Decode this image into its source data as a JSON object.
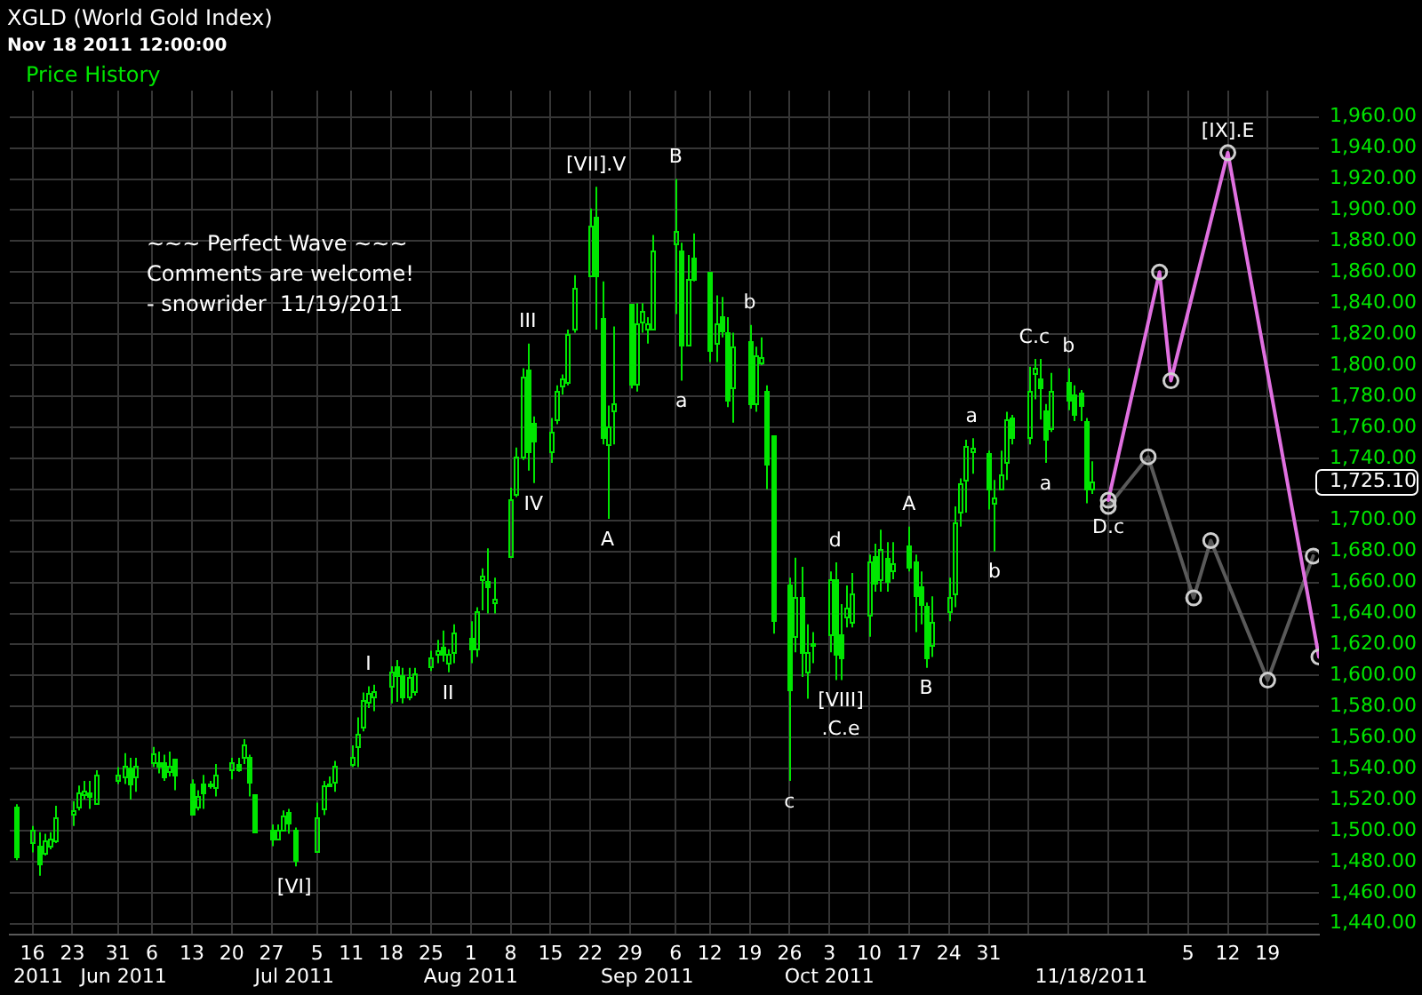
{
  "chart_data": {
    "type": "candlestick",
    "title": "XGLD (World Gold Index)",
    "subtitle": "Nov 18 2011 12:00:00",
    "x": [
      "2011-05-13",
      "2011-05-16",
      "2011-05-17",
      "2011-05-18",
      "2011-05-19",
      "2011-05-20",
      "2011-05-23",
      "2011-05-24",
      "2011-05-25",
      "2011-05-26",
      "2011-05-27",
      "2011-05-31",
      "2011-06-01",
      "2011-06-02",
      "2011-06-03",
      "2011-06-06",
      "2011-06-07",
      "2011-06-08",
      "2011-06-09",
      "2011-06-10",
      "2011-06-13",
      "2011-06-14",
      "2011-06-15",
      "2011-06-16",
      "2011-06-17",
      "2011-06-20",
      "2011-06-21",
      "2011-06-22",
      "2011-06-23",
      "2011-06-24",
      "2011-06-27",
      "2011-06-28",
      "2011-06-29",
      "2011-06-30",
      "2011-07-01",
      "2011-07-05",
      "2011-07-06",
      "2011-07-07",
      "2011-07-08",
      "2011-07-11",
      "2011-07-12",
      "2011-07-13",
      "2011-07-14",
      "2011-07-15",
      "2011-07-18",
      "2011-07-19",
      "2011-07-20",
      "2011-07-21",
      "2011-07-22",
      "2011-07-25",
      "2011-07-26",
      "2011-07-27",
      "2011-07-28",
      "2011-07-29",
      "2011-08-01",
      "2011-08-02",
      "2011-08-03",
      "2011-08-04",
      "2011-08-05",
      "2011-08-08",
      "2011-08-09",
      "2011-08-10",
      "2011-08-11",
      "2011-08-12",
      "2011-08-15",
      "2011-08-16",
      "2011-08-17",
      "2011-08-18",
      "2011-08-19",
      "2011-08-22",
      "2011-08-23",
      "2011-08-24",
      "2011-08-25",
      "2011-08-26",
      "2011-08-29",
      "2011-08-30",
      "2011-08-31",
      "2011-09-01",
      "2011-09-02",
      "2011-09-06",
      "2011-09-07",
      "2011-09-08",
      "2011-09-09",
      "2011-09-12",
      "2011-09-13",
      "2011-09-14",
      "2011-09-15",
      "2011-09-16",
      "2011-09-19",
      "2011-09-20",
      "2011-09-21",
      "2011-09-22",
      "2011-09-23",
      "2011-09-26",
      "2011-09-27",
      "2011-09-28",
      "2011-09-29",
      "2011-09-30",
      "2011-10-03",
      "2011-10-04",
      "2011-10-05",
      "2011-10-06",
      "2011-10-07",
      "2011-10-10",
      "2011-10-11",
      "2011-10-12",
      "2011-10-13",
      "2011-10-14",
      "2011-10-17",
      "2011-10-18",
      "2011-10-19",
      "2011-10-20",
      "2011-10-21",
      "2011-10-24",
      "2011-10-25",
      "2011-10-26",
      "2011-10-27",
      "2011-10-28",
      "2011-10-31",
      "2011-11-01",
      "2011-11-02",
      "2011-11-03",
      "2011-11-04",
      "2011-11-07",
      "2011-11-08",
      "2011-11-09",
      "2011-11-10",
      "2011-11-11",
      "2011-11-14",
      "2011-11-15",
      "2011-11-16",
      "2011-11-17",
      "2011-11-18"
    ],
    "series": [
      {
        "name": "Price History",
        "color": "#00e600",
        "ohlc": [
          [
            1515,
            1517,
            1481,
            1483
          ],
          [
            1493,
            1503,
            1486,
            1500
          ],
          [
            1490,
            1499,
            1471,
            1479
          ],
          [
            1486,
            1498,
            1484,
            1494
          ],
          [
            1490,
            1499,
            1488,
            1495
          ],
          [
            1494,
            1516,
            1492,
            1509
          ],
          [
            1511,
            1519,
            1503,
            1513
          ],
          [
            1516,
            1529,
            1513,
            1525
          ],
          [
            1524,
            1532,
            1520,
            1526
          ],
          [
            1525,
            1532,
            1514,
            1522
          ],
          [
            1518,
            1539,
            1518,
            1536
          ],
          [
            1533,
            1541,
            1530,
            1536
          ],
          [
            1535,
            1550,
            1530,
            1542
          ],
          [
            1541,
            1547,
            1520,
            1530
          ],
          [
            1535,
            1547,
            1525,
            1542
          ],
          [
            1544,
            1554,
            1541,
            1550
          ],
          [
            1544,
            1551,
            1537,
            1542
          ],
          [
            1544,
            1549,
            1532,
            1535
          ],
          [
            1538,
            1551,
            1535,
            1542
          ],
          [
            1546,
            1546,
            1526,
            1536
          ],
          [
            1530,
            1533,
            1510,
            1511
          ],
          [
            1516,
            1526,
            1513,
            1522
          ],
          [
            1530,
            1536,
            1514,
            1525
          ],
          [
            1529,
            1532,
            1527,
            1530
          ],
          [
            1528,
            1543,
            1522,
            1536
          ],
          [
            1540,
            1547,
            1533,
            1544
          ],
          [
            1543,
            1547,
            1538,
            1540
          ],
          [
            1547,
            1559,
            1543,
            1556
          ],
          [
            1547,
            1549,
            1522,
            1531
          ],
          [
            1524,
            1524,
            1499,
            1499
          ],
          [
            1500,
            1504,
            1490,
            1495
          ],
          [
            1495,
            1504,
            1494,
            1500
          ],
          [
            1501,
            1513,
            1501,
            1510
          ],
          [
            1512,
            1514,
            1498,
            1505
          ],
          [
            1500,
            1502,
            1477,
            1481
          ],
          [
            1487,
            1518,
            1487,
            1509
          ],
          [
            1514,
            1532,
            1510,
            1529
          ],
          [
            1529,
            1535,
            1529,
            1530
          ],
          [
            1532,
            1545,
            1525,
            1542
          ],
          [
            1543,
            1555,
            1541,
            1548
          ],
          [
            1554,
            1573,
            1541,
            1562
          ],
          [
            1567,
            1589,
            1564,
            1584
          ],
          [
            1583,
            1593,
            1579,
            1589
          ],
          [
            1587,
            1594,
            1577,
            1590
          ],
          [
            1593,
            1606,
            1582,
            1602
          ],
          [
            1606,
            1610,
            1583,
            1600
          ],
          [
            1600,
            1605,
            1582,
            1587
          ],
          [
            1586,
            1605,
            1584,
            1599
          ],
          [
            1590,
            1605,
            1587,
            1601
          ],
          [
            1606,
            1616,
            1603,
            1612
          ],
          [
            1614,
            1623,
            1608,
            1616
          ],
          [
            1619,
            1629,
            1609,
            1614
          ],
          [
            1608,
            1617,
            1602,
            1614
          ],
          [
            1615,
            1633,
            1608,
            1628
          ],
          [
            1624,
            1635,
            1608,
            1617
          ],
          [
            1617,
            1644,
            1612,
            1641
          ],
          [
            1662,
            1669,
            1642,
            1664
          ],
          [
            1661,
            1682,
            1640,
            1657
          ],
          [
            1647,
            1663,
            1640,
            1650
          ],
          [
            1677,
            1721,
            1677,
            1714
          ],
          [
            1717,
            1747,
            1715,
            1741
          ],
          [
            1741,
            1798,
            1739,
            1793
          ],
          [
            1797,
            1814,
            1732,
            1745
          ],
          [
            1763,
            1767,
            1724,
            1751
          ],
          [
            1744,
            1766,
            1737,
            1757
          ],
          [
            1765,
            1787,
            1762,
            1783
          ],
          [
            1787,
            1794,
            1781,
            1791
          ],
          [
            1789,
            1823,
            1787,
            1820
          ],
          [
            1824,
            1858,
            1821,
            1850
          ],
          [
            1858,
            1901,
            1857,
            1890
          ],
          [
            1896,
            1915,
            1823,
            1858
          ],
          [
            1830,
            1854,
            1749,
            1754
          ],
          [
            1749,
            1774,
            1701,
            1760
          ],
          [
            1771,
            1825,
            1749,
            1776
          ],
          [
            1839,
            1839,
            1785,
            1788
          ],
          [
            1788,
            1840,
            1783,
            1827
          ],
          [
            1828,
            1840,
            1821,
            1835
          ],
          [
            1824,
            1831,
            1814,
            1827
          ],
          [
            1824,
            1884,
            1824,
            1874
          ],
          [
            1879,
            1920,
            1833,
            1886
          ],
          [
            1874,
            1879,
            1790,
            1813
          ],
          [
            1813,
            1871,
            1813,
            1856
          ],
          [
            1869,
            1885,
            1854,
            1856
          ],
          [
            1860,
            1860,
            1802,
            1810
          ],
          [
            1814,
            1845,
            1802,
            1827
          ],
          [
            1831,
            1844,
            1818,
            1822
          ],
          [
            1821,
            1831,
            1773,
            1778
          ],
          [
            1786,
            1821,
            1763,
            1812
          ],
          [
            1816,
            1826,
            1772,
            1775
          ],
          [
            1776,
            1812,
            1770,
            1806
          ],
          [
            1802,
            1818,
            1800,
            1805
          ],
          [
            1783,
            1787,
            1720,
            1737
          ],
          [
            1755,
            1755,
            1627,
            1636
          ],
          [
            1659,
            1663,
            1532,
            1591
          ],
          [
            1625,
            1676,
            1615,
            1651
          ],
          [
            1651,
            1670,
            1599,
            1615
          ],
          [
            1603,
            1633,
            1585,
            1615
          ],
          [
            1620,
            1628,
            1608,
            1621
          ],
          [
            1627,
            1667,
            1615,
            1662
          ],
          [
            1662,
            1673,
            1597,
            1614
          ],
          [
            1627,
            1646,
            1597,
            1612
          ],
          [
            1638,
            1658,
            1631,
            1644
          ],
          [
            1635,
            1666,
            1631,
            1653
          ],
          [
            1639,
            1678,
            1625,
            1673
          ],
          [
            1677,
            1685,
            1654,
            1660
          ],
          [
            1662,
            1694,
            1654,
            1682
          ],
          [
            1676,
            1686,
            1654,
            1661
          ],
          [
            1668,
            1686,
            1662,
            1672
          ],
          [
            1684,
            1696,
            1667,
            1670
          ],
          [
            1673,
            1678,
            1628,
            1652
          ],
          [
            1657,
            1667,
            1633,
            1646
          ],
          [
            1645,
            1647,
            1605,
            1612
          ],
          [
            1620,
            1651,
            1612,
            1635
          ],
          [
            1641,
            1663,
            1635,
            1651
          ],
          [
            1653,
            1709,
            1644,
            1699
          ],
          [
            1706,
            1727,
            1696,
            1724
          ],
          [
            1726,
            1752,
            1705,
            1748
          ],
          [
            1745,
            1753,
            1730,
            1747
          ],
          [
            1743,
            1745,
            1707,
            1720
          ],
          [
            1711,
            1726,
            1680,
            1715
          ],
          [
            1721,
            1745,
            1721,
            1730
          ],
          [
            1738,
            1770,
            1726,
            1765
          ],
          [
            1766,
            1768,
            1749,
            1754
          ],
          [
            1754,
            1799,
            1749,
            1784
          ],
          [
            1795,
            1804,
            1778,
            1798
          ],
          [
            1791,
            1804,
            1765,
            1786
          ],
          [
            1771,
            1775,
            1737,
            1752
          ],
          [
            1759,
            1795,
            1757,
            1784
          ],
          [
            1789,
            1798,
            1771,
            1778
          ],
          [
            1781,
            1787,
            1764,
            1769
          ],
          [
            1782,
            1784,
            1764,
            1774
          ],
          [
            1764,
            1766,
            1711,
            1721
          ],
          [
            1721,
            1738,
            1717,
            1725.1
          ]
        ]
      },
      {
        "type": "line",
        "color": "#e070e0",
        "x": [
          "2011-11-21",
          "2011-11-30",
          "2011-12-02",
          "2011-12-12",
          "2011-12-28"
        ],
        "values": [
          1713,
          1860,
          1790,
          1937,
          1612
        ]
      },
      {
        "type": "line",
        "color": "#5a5a5a",
        "x": [
          "2011-11-21",
          "2011-11-28",
          "2011-12-06",
          "2011-12-09",
          "2011-12-19",
          "2011-12-27"
        ],
        "values": [
          1709,
          1741,
          1650,
          1687,
          1597,
          1677
        ]
      }
    ],
    "xlim": [
      "2011-05-12",
      "2011-12-28"
    ],
    "xticks": [
      {
        "value": "2011-05-16",
        "label": "16"
      },
      {
        "value": "2011-05-23",
        "label": "23"
      },
      {
        "value": "2011-05-31",
        "label": "31"
      },
      {
        "value": "2011-06-06",
        "label": "6"
      },
      {
        "value": "2011-06-13",
        "label": "13"
      },
      {
        "value": "2011-06-20",
        "label": "20"
      },
      {
        "value": "2011-06-27",
        "label": "27"
      },
      {
        "value": "2011-07-05",
        "label": "5"
      },
      {
        "value": "2011-07-11",
        "label": "11"
      },
      {
        "value": "2011-07-18",
        "label": "18"
      },
      {
        "value": "2011-07-25",
        "label": "25"
      },
      {
        "value": "2011-08-01",
        "label": "1"
      },
      {
        "value": "2011-08-08",
        "label": "8"
      },
      {
        "value": "2011-08-15",
        "label": "15"
      },
      {
        "value": "2011-08-22",
        "label": "22"
      },
      {
        "value": "2011-08-29",
        "label": "29"
      },
      {
        "value": "2011-09-06",
        "label": "6"
      },
      {
        "value": "2011-09-12",
        "label": "12"
      },
      {
        "value": "2011-09-19",
        "label": "19"
      },
      {
        "value": "2011-09-26",
        "label": "26"
      },
      {
        "value": "2011-10-03",
        "label": "3"
      },
      {
        "value": "2011-10-10",
        "label": "10"
      },
      {
        "value": "2011-10-17",
        "label": "17"
      },
      {
        "value": "2011-10-24",
        "label": "24"
      },
      {
        "value": "2011-10-31",
        "label": "31"
      },
      {
        "value": "2011-11-07",
        "label": null
      },
      {
        "value": "2011-11-14",
        "label": null
      },
      {
        "value": "2011-11-21",
        "label": null
      },
      {
        "value": "2011-11-28",
        "label": null
      },
      {
        "value": "2011-12-05",
        "label": "5"
      },
      {
        "value": "2011-12-12",
        "label": "12"
      },
      {
        "value": "2011-12-19",
        "label": "19"
      }
    ],
    "x2lim": [
      "2011-05-12",
      "2011-12-28"
    ],
    "x2ticks": [
      {
        "value": "2011-05-17",
        "label": "2011"
      },
      {
        "value": "2011-06-01",
        "label": "Jun 2011"
      },
      {
        "value": "2011-07-01",
        "label": "Jul 2011"
      },
      {
        "value": "2011-08-01",
        "label": "Aug 2011"
      },
      {
        "value": "2011-09-01",
        "label": "Sep 2011"
      },
      {
        "value": "2011-10-03",
        "label": "Oct 2011"
      },
      {
        "value": "2011-11-18",
        "label": "11/18/2011"
      }
    ],
    "ylim": [
      1433,
      1977
    ],
    "yticks": [
      {
        "value": 1440,
        "label": "1,440.00"
      },
      {
        "value": 1460,
        "label": "1,460.00"
      },
      {
        "value": 1480,
        "label": "1,480.00"
      },
      {
        "value": 1500,
        "label": "1,500.00"
      },
      {
        "value": 1520,
        "label": "1,520.00"
      },
      {
        "value": 1540,
        "label": "1,540.00"
      },
      {
        "value": 1560,
        "label": "1,560.00"
      },
      {
        "value": 1580,
        "label": "1,580.00"
      },
      {
        "value": 1600,
        "label": "1,600.00"
      },
      {
        "value": 1620,
        "label": "1,620.00"
      },
      {
        "value": 1640,
        "label": "1,640.00"
      },
      {
        "value": 1660,
        "label": "1,660.00"
      },
      {
        "value": 1680,
        "label": "1,680.00"
      },
      {
        "value": 1700,
        "label": "1,700.00"
      },
      {
        "value": 1720,
        "label": null
      },
      {
        "value": 1725.1,
        "label": "1,725.10"
      },
      {
        "value": 1740,
        "label": "1,740.00"
      },
      {
        "value": 1760,
        "label": "1,760.00"
      },
      {
        "value": 1780,
        "label": "1,780.00"
      },
      {
        "value": 1800,
        "label": "1,800.00"
      },
      {
        "value": 1820,
        "label": "1,820.00"
      },
      {
        "value": 1840,
        "label": "1,840.00"
      },
      {
        "value": 1860,
        "label": "1,860.00"
      },
      {
        "value": 1880,
        "label": "1,880.00"
      },
      {
        "value": 1900,
        "label": "1,900.00"
      },
      {
        "value": 1920,
        "label": "1,920.00"
      },
      {
        "value": 1940,
        "label": "1,940.00"
      },
      {
        "value": 1960,
        "label": "1,960.00"
      }
    ],
    "annotations": [
      "~~~ Perfect Wave ~~~",
      "Comments are welcome!",
      "- snowrider  11/19/2011",
      {
        "text": "[VI]",
        "x": "2011-07-01",
        "y": 1477
      },
      {
        "text": "I",
        "x": "2011-07-14",
        "y": 1593
      },
      {
        "text": "II",
        "x": "2011-07-28",
        "y": 1602
      },
      {
        "text": "III",
        "x": "2011-08-11",
        "y": 1814
      },
      {
        "text": "IV",
        "x": "2011-08-12",
        "y": 1724
      },
      {
        "text": "[VII].V",
        "x": "2011-08-23",
        "y": 1915
      },
      {
        "text": "A",
        "x": "2011-08-25",
        "y": 1701
      },
      {
        "text": "B",
        "x": "2011-09-06",
        "y": 1920
      },
      {
        "text": "a",
        "x": "2011-09-07",
        "y": 1790
      },
      {
        "text": "b",
        "x": "2011-09-19",
        "y": 1826
      },
      {
        "text": "c",
        "x": "2011-09-26",
        "y": 1532
      },
      {
        "text": "d",
        "x": "2011-10-04",
        "y": 1673
      },
      {
        "text": "[VIII]",
        "x": "2011-10-05",
        "y": 1597
      },
      {
        "text": ".C.e",
        "x": "2011-10-05",
        "y": 1597
      },
      {
        "text": "A",
        "x": "2011-10-17",
        "y": 1696
      },
      {
        "text": "B",
        "x": "2011-10-20",
        "y": 1605
      },
      {
        "text": "a",
        "x": "2011-10-28",
        "y": 1753
      },
      {
        "text": "b",
        "x": "2011-11-01",
        "y": 1680
      },
      {
        "text": "C.c",
        "x": "2011-11-08",
        "y": 1804
      },
      {
        "text": "a",
        "x": "2011-11-10",
        "y": 1737
      },
      {
        "text": "b",
        "x": "2011-11-14",
        "y": 1798
      },
      {
        "text": "D.c",
        "x": "2011-11-21",
        "y": 1709
      },
      {
        "text": "[IX].E",
        "x": "2011-12-12",
        "y": 1937
      }
    ],
    "grid": true,
    "legend": "top left",
    "marker": "circle"
  }
}
